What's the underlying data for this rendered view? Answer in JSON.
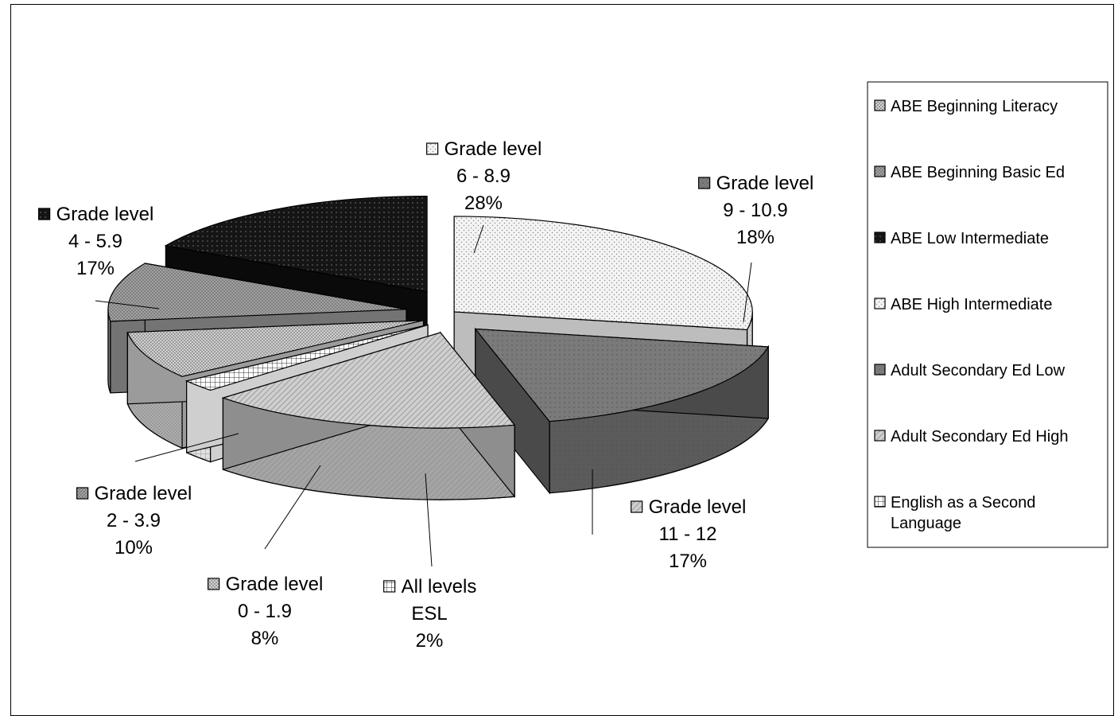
{
  "chart_data": {
    "type": "pie",
    "style": "3d-exploded",
    "slices": [
      {
        "category": "Grade level",
        "range": "6 - 8.9",
        "percent_label": "28%",
        "value": 28,
        "legend": "ABE High Intermediate",
        "pattern": "dots-light"
      },
      {
        "category": "Grade level",
        "range": "9 - 10.9",
        "percent_label": "18%",
        "value": 18,
        "legend": "Adult Secondary Ed Low",
        "pattern": "dark-gray"
      },
      {
        "category": "Grade level",
        "range": "11 - 12",
        "percent_label": "17%",
        "value": 17,
        "legend": "Adult Secondary Ed High",
        "pattern": "diagonal"
      },
      {
        "category": "All levels",
        "range": "ESL",
        "percent_label": "2%",
        "value": 2,
        "legend": "English as a Second Language",
        "pattern": "grid"
      },
      {
        "category": "Grade level",
        "range": "0 - 1.9",
        "percent_label": "8%",
        "value": 8,
        "legend": "ABE Beginning Literacy",
        "pattern": "crosshatch"
      },
      {
        "category": "Grade level",
        "range": "2 - 3.9",
        "percent_label": "10%",
        "value": 10,
        "legend": "ABE Beginning Basic Ed",
        "pattern": "medium"
      },
      {
        "category": "Grade level",
        "range": "4 - 5.9",
        "percent_label": "17%",
        "value": 17,
        "legend": "ABE Low Intermediate",
        "pattern": "black"
      }
    ],
    "legend": {
      "position": "right",
      "entries": [
        "ABE Beginning Literacy",
        "ABE Beginning Basic Ed",
        "ABE Low Intermediate",
        "ABE High Intermediate",
        "Adult Secondary Ed Low",
        "Adult Secondary Ed High",
        "English as a Second Language"
      ]
    }
  }
}
